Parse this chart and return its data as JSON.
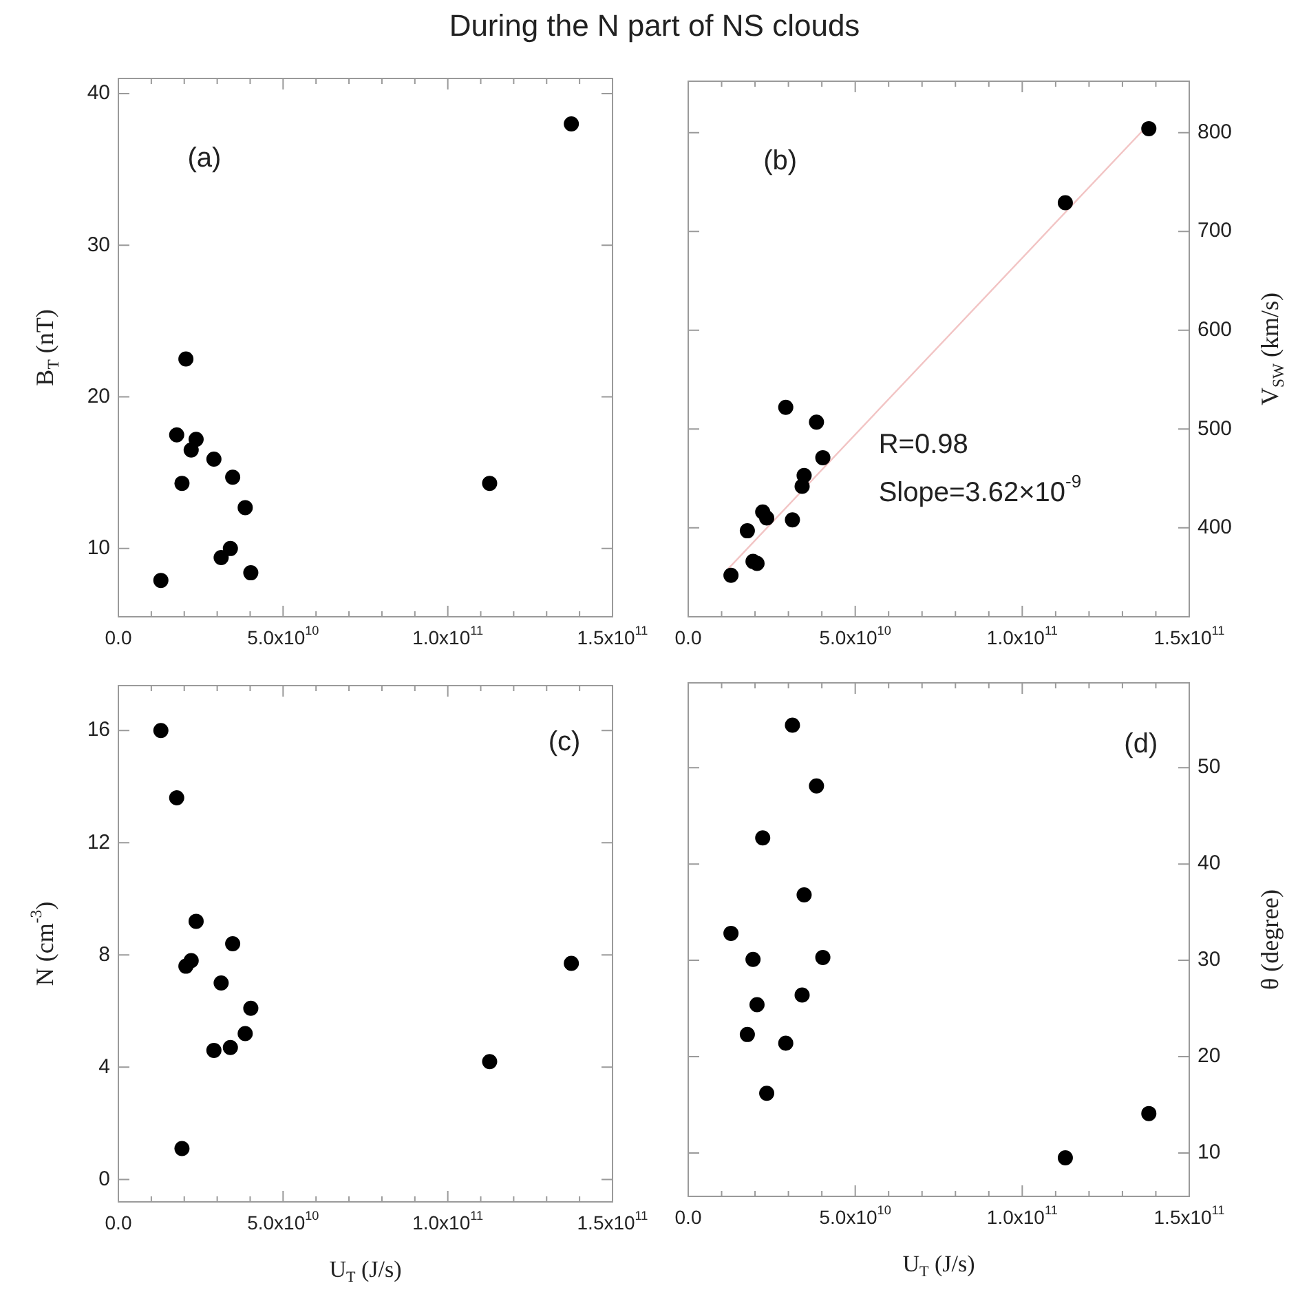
{
  "chart_data": [
    {
      "type": "scatter",
      "title": "During the N part of NS clouds",
      "ylabel": "B$_{T}$ (nT)",
      "marker": "circle",
      "annotations": [
        "(a)"
      ],
      "xlim": [
        0,
        150000000000.0
      ],
      "xticks": [
        {
          "value": 0,
          "label": "0.0"
        },
        {
          "value": 10000000000.0,
          "label": null
        },
        {
          "value": 20000000000.0,
          "label": null
        },
        {
          "value": 30000000000.0,
          "label": null
        },
        {
          "value": 40000000000.0,
          "label": null
        },
        {
          "value": 50000000000.0,
          "label": "5.0x10$^{10}$"
        },
        {
          "value": 60000000000.0,
          "label": null
        },
        {
          "value": 70000000000.0,
          "label": null
        },
        {
          "value": 80000000000.0,
          "label": null
        },
        {
          "value": 90000000000.0,
          "label": null
        },
        {
          "value": 100000000000.0,
          "label": "1.0x10$^{11}$"
        },
        {
          "value": 110000000000.0,
          "label": null
        },
        {
          "value": 120000000000.0,
          "label": null
        },
        {
          "value": 130000000000.0,
          "label": null
        },
        {
          "value": 140000000000.0,
          "label": null
        },
        {
          "value": 150000000000.0,
          "label": "1.5x10$^{11}$"
        }
      ],
      "ylim": [
        5.5,
        41
      ],
      "yticks": [
        10,
        20,
        30,
        40
      ],
      "x": [
        12900000000.0,
        17700000000.0,
        19300000000.0,
        20500000000.0,
        22100000000.0,
        23600000000.0,
        29000000000.0,
        34700000000.0,
        31200000000.0,
        34000000000.0,
        38500000000.0,
        40200000000.0,
        112700000000.0,
        137500000000.0
      ],
      "series": [
        {
          "color": "#000000",
          "values": [
            7.9,
            17.5,
            14.3,
            22.5,
            16.5,
            17.2,
            15.9,
            14.7,
            9.4,
            10.0,
            12.7,
            8.4,
            14.3,
            38.0
          ]
        }
      ]
    },
    {
      "type": "scatter",
      "y2label": "V$_{SW}$ (km/s)",
      "marker": "circle",
      "annotations": [
        "(b)",
        "R=0.98",
        "Slope=3.62×10$^{-9}$"
      ],
      "xlim": [
        0,
        150000000000.0
      ],
      "xticks": [
        {
          "value": 0,
          "label": "0.0"
        },
        {
          "value": 10000000000.0,
          "label": null
        },
        {
          "value": 20000000000.0,
          "label": null
        },
        {
          "value": 30000000000.0,
          "label": null
        },
        {
          "value": 40000000000.0,
          "label": null
        },
        {
          "value": 50000000000.0,
          "label": "5.0x10$^{10}$"
        },
        {
          "value": 60000000000.0,
          "label": null
        },
        {
          "value": 70000000000.0,
          "label": null
        },
        {
          "value": 80000000000.0,
          "label": null
        },
        {
          "value": 90000000000.0,
          "label": null
        },
        {
          "value": 100000000000.0,
          "label": "1.0x10$^{11}$"
        },
        {
          "value": 110000000000.0,
          "label": null
        },
        {
          "value": 120000000000.0,
          "label": null
        },
        {
          "value": 130000000000.0,
          "label": null
        },
        {
          "value": 140000000000.0,
          "label": null
        },
        {
          "value": 150000000000.0,
          "label": "1.5x10$^{11}$"
        }
      ],
      "y2lim": [
        310,
        852
      ],
      "y2ticks": [
        400,
        500,
        600,
        700,
        800
      ],
      "x": [
        12800000000.0,
        17700000000.0,
        19400000000.0,
        20600000000.0,
        22300000000.0,
        23500000000.0,
        29200000000.0,
        31200000000.0,
        34100000000.0,
        34700000000.0,
        38400000000.0,
        40300000000.0,
        112900000000.0,
        137900000000.0
      ],
      "series": [
        {
          "color": "#000000",
          "axis": "y2",
          "values": [
            352,
            397,
            366,
            364,
            416,
            410,
            522,
            408,
            442,
            453,
            507,
            471,
            729,
            804
          ]
        },
        {
          "type": "line",
          "marker": "none",
          "color": "#f2c4c4",
          "axis": "y2",
          "x": [
            12100000000.0,
            138000000000.0
          ],
          "values": [
            359,
            809
          ]
        }
      ]
    },
    {
      "type": "scatter",
      "ylabel": "N (cm$^{-3}$)",
      "xlabel": "U$_{T}$ (J/s)",
      "marker": "circle",
      "annotations": [
        "(c)"
      ],
      "xlim": [
        0,
        150000000000.0
      ],
      "xticks": [
        {
          "value": 0,
          "label": "0.0"
        },
        {
          "value": 10000000000.0,
          "label": null
        },
        {
          "value": 20000000000.0,
          "label": null
        },
        {
          "value": 30000000000.0,
          "label": null
        },
        {
          "value": 40000000000.0,
          "label": null
        },
        {
          "value": 50000000000.0,
          "label": "5.0x10$^{10}$"
        },
        {
          "value": 60000000000.0,
          "label": null
        },
        {
          "value": 70000000000.0,
          "label": null
        },
        {
          "value": 80000000000.0,
          "label": null
        },
        {
          "value": 90000000000.0,
          "label": null
        },
        {
          "value": 100000000000.0,
          "label": "1.0x10$^{11}$"
        },
        {
          "value": 110000000000.0,
          "label": null
        },
        {
          "value": 120000000000.0,
          "label": null
        },
        {
          "value": 130000000000.0,
          "label": null
        },
        {
          "value": 140000000000.0,
          "label": null
        },
        {
          "value": 150000000000.0,
          "label": "1.5x10$^{11}$"
        }
      ],
      "ylim": [
        -0.8,
        17.6
      ],
      "yticks": [
        0,
        4,
        8,
        12,
        16
      ],
      "x": [
        12900000000.0,
        17700000000.0,
        19300000000.0,
        20500000000.0,
        22100000000.0,
        23600000000.0,
        29000000000.0,
        31200000000.0,
        34000000000.0,
        34700000000.0,
        38500000000.0,
        40200000000.0,
        112700000000.0,
        137500000000.0
      ],
      "series": [
        {
          "color": "#000000",
          "values": [
            16.0,
            13.6,
            1.1,
            7.6,
            7.8,
            9.2,
            4.6,
            7.0,
            4.7,
            8.4,
            5.2,
            6.1,
            4.2,
            7.7
          ]
        }
      ]
    },
    {
      "type": "scatter",
      "y2label": "θ (degree)",
      "xlabel": "U$_{T}$ (J/s)",
      "marker": "circle",
      "annotations": [
        "(d)"
      ],
      "xlim": [
        0,
        150000000000.0
      ],
      "xticks": [
        {
          "value": 0,
          "label": "0.0"
        },
        {
          "value": 10000000000.0,
          "label": null
        },
        {
          "value": 20000000000.0,
          "label": null
        },
        {
          "value": 30000000000.0,
          "label": null
        },
        {
          "value": 40000000000.0,
          "label": null
        },
        {
          "value": 50000000000.0,
          "label": "5.0x10$^{10}$"
        },
        {
          "value": 60000000000.0,
          "label": null
        },
        {
          "value": 70000000000.0,
          "label": null
        },
        {
          "value": 80000000000.0,
          "label": null
        },
        {
          "value": 90000000000.0,
          "label": null
        },
        {
          "value": 100000000000.0,
          "label": "1.0x10$^{11}$"
        },
        {
          "value": 110000000000.0,
          "label": null
        },
        {
          "value": 120000000000.0,
          "label": null
        },
        {
          "value": 130000000000.0,
          "label": null
        },
        {
          "value": 140000000000.0,
          "label": null
        },
        {
          "value": 150000000000.0,
          "label": "1.5x10$^{11}$"
        }
      ],
      "y2lim": [
        5.5,
        58.8
      ],
      "y2ticks": [
        10,
        20,
        30,
        40,
        50
      ],
      "x": [
        12800000000.0,
        17700000000.0,
        19400000000.0,
        20600000000.0,
        22300000000.0,
        23500000000.0,
        29200000000.0,
        31200000000.0,
        34100000000.0,
        34700000000.0,
        38400000000.0,
        40300000000.0,
        112900000000.0,
        137900000000.0
      ],
      "series": [
        {
          "color": "#000000",
          "axis": "y2",
          "values": [
            32.8,
            22.3,
            30.1,
            25.4,
            42.7,
            16.2,
            21.4,
            54.4,
            26.4,
            36.8,
            48.1,
            30.3,
            9.5,
            14.1
          ]
        }
      ]
    }
  ]
}
